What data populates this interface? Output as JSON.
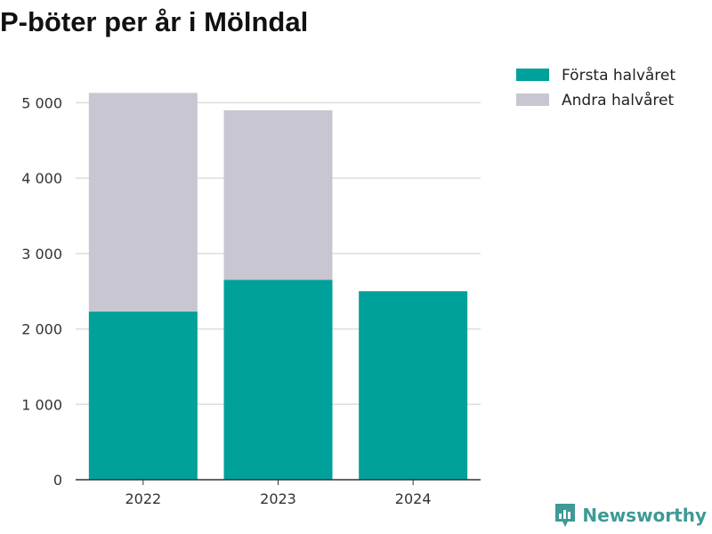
{
  "colors": {
    "first_half": "#00a19a",
    "second_half": "#c8c7d1",
    "grid": "#dddddd",
    "axis": "#333333",
    "brand": "#3e9a95"
  },
  "chart_data": {
    "type": "bar",
    "stacked": true,
    "title": "P-böter per år i Mölndal",
    "categories": [
      "2022",
      "2023",
      "2024"
    ],
    "series": [
      {
        "name": "Första halvåret",
        "values": [
          2230,
          2650,
          2500
        ]
      },
      {
        "name": "Andra halvåret",
        "values": [
          2900,
          2250,
          0
        ]
      }
    ],
    "ylim": [
      0,
      5300
    ],
    "yticks": [
      0,
      1000,
      2000,
      3000,
      4000,
      5000
    ],
    "ytick_labels": [
      "0",
      "1 000",
      "2 000",
      "3 000",
      "4 000",
      "5 000"
    ],
    "grid": true,
    "legend_position": "top-right"
  },
  "brand": {
    "name": "Newsworthy",
    "icon": "newsworthy-logo-icon"
  }
}
